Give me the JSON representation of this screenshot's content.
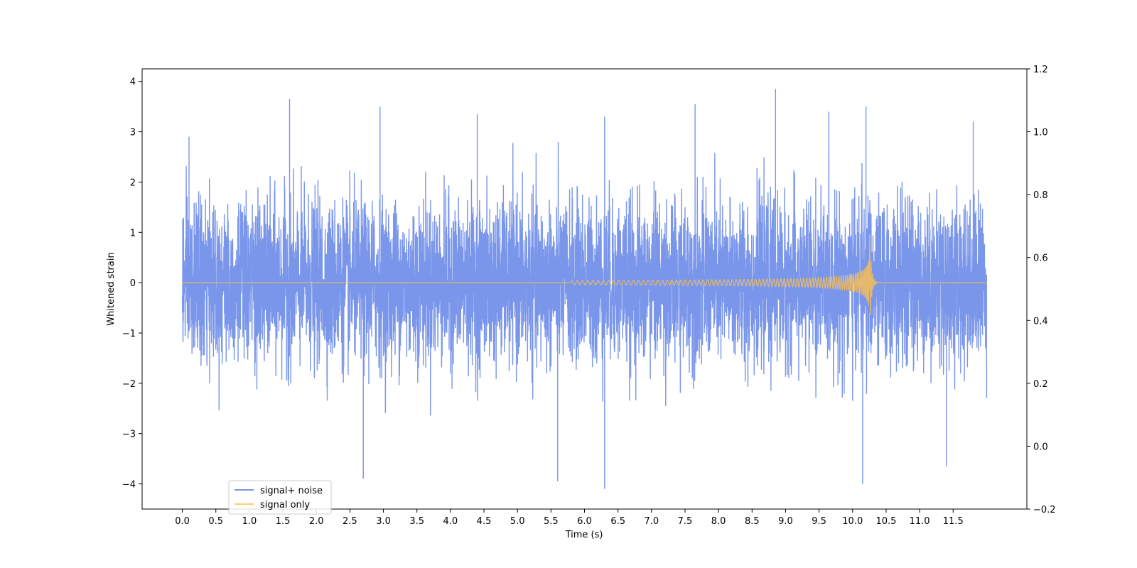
{
  "chart_data": {
    "type": "line",
    "xlabel": "Time (s)",
    "ylabel": "Whitened strain",
    "xlim": [
      -0.6,
      12.6
    ],
    "ylim": [
      -4.5,
      4.25
    ],
    "y2lim": [
      -0.2,
      1.2
    ],
    "x_ticks": [
      "0.0",
      "0.5",
      "1.0",
      "1.5",
      "2.0",
      "2.5",
      "3.0",
      "3.5",
      "4.0",
      "4.5",
      "5.0",
      "5.5",
      "6.0",
      "6.5",
      "7.0",
      "7.5",
      "8.0",
      "8.5",
      "9.0",
      "9.5",
      "10.0",
      "10.5",
      "11.0",
      "11.5"
    ],
    "y_ticks": [
      "4",
      "3",
      "2",
      "1",
      "0",
      "−1",
      "−2",
      "−3",
      "−4"
    ],
    "y2_ticks": [
      "1.2",
      "1.0",
      "0.8",
      "0.6",
      "0.4",
      "0.2",
      "0.0",
      "−0.2"
    ],
    "legend_position": "lower-left",
    "series": [
      {
        "name": "signal+ noise",
        "color": "#4169e1",
        "opacity": 0.7,
        "x_range": [
          0.0,
          12.0
        ],
        "noise_std": 0.78,
        "envelope_peaks": [
          {
            "x": 0.1,
            "y": 2.9
          },
          {
            "x": 1.6,
            "y": 3.65
          },
          {
            "x": 2.95,
            "y": 3.5
          },
          {
            "x": 4.4,
            "y": 3.35
          },
          {
            "x": 6.3,
            "y": 3.3
          },
          {
            "x": 7.65,
            "y": 3.55
          },
          {
            "x": 8.85,
            "y": 3.85
          },
          {
            "x": 10.2,
            "y": 3.5
          },
          {
            "x": 11.8,
            "y": 3.2
          },
          {
            "x": 2.7,
            "y": -3.9
          },
          {
            "x": 5.6,
            "y": -3.95
          },
          {
            "x": 6.3,
            "y": -4.1
          },
          {
            "x": 10.15,
            "y": -4.0
          },
          {
            "x": 11.4,
            "y": -3.65
          }
        ]
      },
      {
        "name": "signal only",
        "color": "#ffc04d",
        "opacity": 0.8,
        "chirp": {
          "start": 5.8,
          "merger": 10.25,
          "peak_pos": 1.75,
          "peak_neg": -1.3,
          "end": 12.0
        }
      }
    ]
  }
}
